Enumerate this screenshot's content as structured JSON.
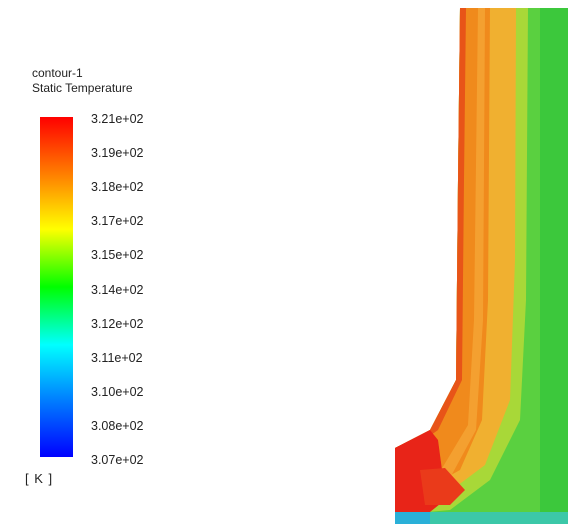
{
  "legend": {
    "contour_name": "contour-1",
    "variable": "Static Temperature",
    "unit": "[ K ]",
    "ticks": [
      "3.21e+02",
      "3.19e+02",
      "3.18e+02",
      "3.17e+02",
      "3.15e+02",
      "3.14e+02",
      "3.12e+02",
      "3.11e+02",
      "3.10e+02",
      "3.08e+02",
      "3.07e+02"
    ],
    "colormap": [
      "#ff0000",
      "#ff8000",
      "#ffff00",
      "#00ff00",
      "#00ffff",
      "#0080ff",
      "#0000ff"
    ]
  },
  "contour_colors": {
    "hot": "#e82418",
    "warm_orange": "#f08a1c",
    "orange_yellow": "#f2b032",
    "yellow_green": "#b7e030",
    "green": "#3cc83c",
    "cyan_blue": "#30b8e0"
  }
}
